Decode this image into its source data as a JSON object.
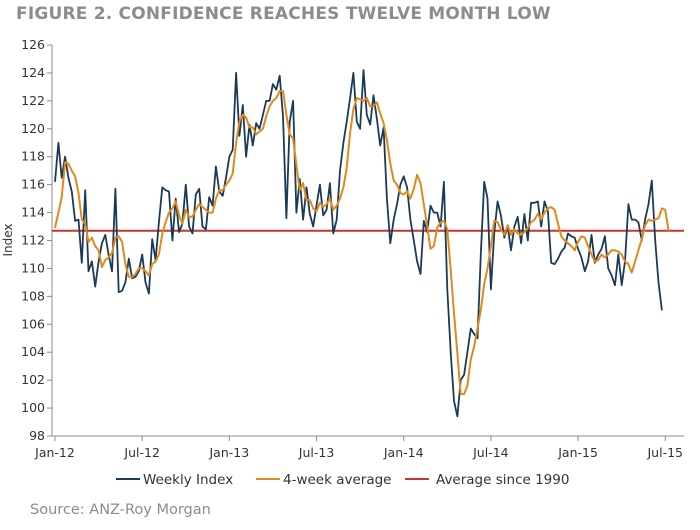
{
  "title": "FIGURE 2. CONFIDENCE REACHES TWELVE MONTH LOW",
  "source": "Source: ANZ-Roy Morgan",
  "chart_data": {
    "type": "line",
    "ylabel": "Index",
    "xlabel": "",
    "ylim": [
      98,
      126
    ],
    "y_ticks": [
      98,
      100,
      102,
      104,
      106,
      108,
      110,
      112,
      114,
      116,
      118,
      120,
      122,
      124,
      126
    ],
    "x_ticks": [
      "Jan-12",
      "Jul-12",
      "Jan-13",
      "Jul-13",
      "Jan-14",
      "Jul-14",
      "Jan-15",
      "Jul-15"
    ],
    "x_tick_weeks": [
      0,
      26,
      52,
      78,
      104,
      130,
      156,
      182
    ],
    "x_unit": "weeks since Jan-12",
    "legend_position": "bottom",
    "colors": {
      "weekly": "#1b3a57",
      "avg4": "#e08a1e",
      "longrun": "#c0392b",
      "axis": "#8c8c8c"
    },
    "series": [
      {
        "name": "Weekly Index",
        "color": "#1b3a57",
        "values": [
          116.2,
          119.0,
          116.5,
          118.0,
          116.5,
          115.5,
          113.4,
          113.5,
          110.4,
          115.6,
          109.8,
          110.5,
          108.7,
          110.5,
          111.8,
          112.4,
          111.0,
          109.8,
          115.7,
          108.3,
          108.4,
          109.0,
          110.7,
          109.3,
          109.4,
          109.8,
          111.0,
          109.0,
          108.2,
          112.1,
          110.6,
          113.3,
          115.8,
          115.6,
          115.5,
          112.0,
          115.0,
          112.6,
          113.2,
          116.0,
          113.0,
          112.5,
          115.3,
          115.7,
          113.0,
          112.8,
          115.1,
          114.5,
          117.3,
          115.5,
          115.2,
          116.5,
          118.0,
          118.5,
          124.0,
          119.5,
          121.7,
          118.0,
          120.3,
          118.8,
          120.4,
          120.0,
          121.0,
          122.0,
          122.0,
          123.2,
          122.8,
          123.8,
          120.9,
          113.6,
          120.5,
          122.0,
          114.0,
          116.4,
          113.5,
          115.8,
          113.9,
          113.0,
          114.5,
          116.0,
          113.8,
          114.2,
          116.1,
          112.5,
          113.5,
          117.0,
          119.0,
          120.5,
          122.2,
          124.0,
          120.5,
          120.0,
          124.2,
          121.0,
          120.3,
          122.4,
          120.7,
          118.8,
          120.1,
          115.0,
          111.8,
          113.5,
          114.6,
          116.0,
          116.6,
          115.8,
          113.5,
          112.0,
          110.5,
          109.6,
          113.4,
          112.6,
          114.5,
          114.0,
          114.0,
          113.0,
          116.2,
          108.5,
          104.0,
          100.5,
          99.4,
          102.0,
          102.4,
          104.0,
          105.7,
          105.3,
          105.0,
          111.0,
          116.2,
          115.0,
          108.5,
          112.5,
          114.8,
          113.8,
          112.2,
          113.0,
          111.3,
          113.0,
          113.7,
          111.8,
          113.9,
          112.0,
          114.7,
          114.7,
          114.8,
          113.0,
          114.8,
          114.1,
          110.4,
          110.3,
          110.7,
          111.2,
          111.5,
          112.5,
          112.3,
          112.2,
          111.4,
          110.8,
          109.8,
          110.5,
          112.4,
          110.4,
          111.0,
          111.4,
          112.3,
          110.0,
          109.5,
          108.8,
          111.0,
          108.8,
          110.5,
          114.6,
          113.5,
          113.5,
          113.3,
          112.0,
          113.5,
          114.6,
          116.3,
          112.0,
          109.0,
          107.0
        ]
      },
      {
        "name": "4-week average",
        "color": "#e08a1e",
        "values": [
          112.9,
          114.0,
          115.1,
          117.6,
          117.5,
          117.0,
          116.6,
          115.4,
          113.5,
          113.2,
          111.9,
          112.2,
          111.6,
          111.3,
          110.1,
          110.6,
          110.8,
          111.1,
          112.2,
          112.3,
          111.9,
          110.3,
          109.4,
          109.4,
          109.6,
          110.0,
          110.0,
          109.8,
          109.5,
          110.3,
          110.5,
          111.0,
          112.5,
          113.3,
          114.0,
          114.3,
          114.8,
          113.8,
          113.2,
          114.2,
          113.7,
          113.7,
          114.2,
          114.6,
          114.4,
          114.2,
          114.0,
          114.0,
          115.0,
          115.6,
          115.6,
          116.0,
          116.3,
          116.8,
          119.0,
          120.5,
          121.0,
          120.8,
          120.1,
          120.1,
          119.6,
          119.8,
          120.0,
          120.9,
          121.6,
          122.0,
          122.2,
          122.7,
          122.7,
          121.0,
          119.6,
          119.3,
          117.4,
          115.6,
          116.1,
          114.9,
          114.9,
          114.3,
          114.1,
          114.7,
          114.4,
          114.6,
          115.0,
          114.2,
          114.5,
          115.0,
          115.8,
          117.2,
          119.7,
          121.4,
          122.2,
          122.1,
          122.0,
          122.2,
          121.6,
          121.6,
          121.9,
          121.1,
          120.4,
          119.2,
          117.5,
          116.3,
          116.0,
          115.4,
          115.3,
          115.5,
          115.0,
          115.7,
          116.7,
          116.1,
          114.6,
          113.0,
          111.4,
          111.6,
          112.9,
          113.3,
          113.4,
          112.8,
          109.9,
          106.8,
          103.9,
          101.0,
          101.0,
          101.6,
          103.5,
          104.4,
          105.7,
          107.0,
          108.9,
          110.0,
          111.6,
          113.4,
          113.3,
          112.8,
          112.4,
          113.1,
          112.4,
          112.8,
          112.5,
          112.4,
          112.6,
          112.9,
          113.3,
          113.5,
          113.9,
          113.5,
          114.0,
          114.3,
          114.4,
          114.2,
          113.2,
          112.3,
          112.0,
          111.8,
          111.6,
          111.3,
          111.9,
          112.3,
          112.2,
          111.6,
          111.0,
          110.5,
          110.6,
          111.0,
          110.8,
          111.0,
          111.3,
          111.3,
          111.2,
          111.0,
          110.5,
          110.3,
          109.7,
          110.5,
          111.3,
          112.1,
          113.1,
          113.5,
          113.4,
          113.5,
          113.6,
          114.3,
          114.2,
          112.7
        ]
      },
      {
        "name": "Average since 1990",
        "color": "#c0392b",
        "values": [
          112.7
        ]
      }
    ]
  }
}
